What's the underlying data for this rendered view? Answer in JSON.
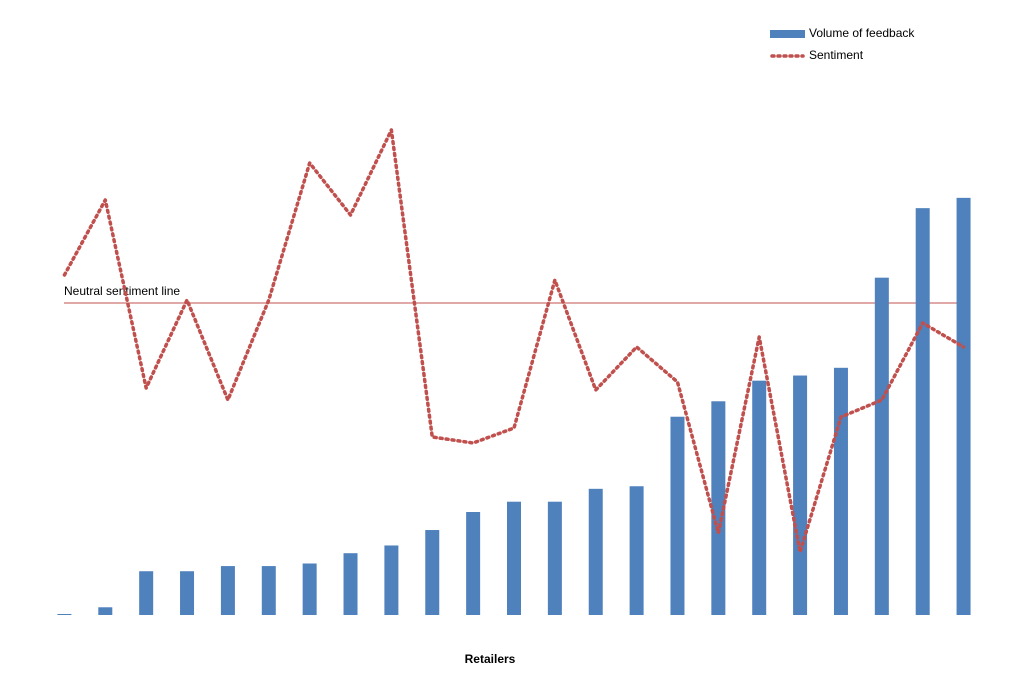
{
  "chart_data": {
    "type": "bar_line",
    "x_label": "Retailers",
    "categories": [
      null,
      null,
      null,
      null,
      null,
      null,
      null,
      null,
      null,
      null,
      null,
      null,
      null,
      null,
      null,
      null,
      null,
      null,
      null,
      null,
      null,
      null,
      null
    ],
    "series": [
      {
        "name": "Volume of feedback",
        "type": "bar",
        "color": "#4f81bd",
        "axis": "y",
        "values": [
          0.2,
          1.5,
          8.5,
          8.5,
          9.5,
          9.5,
          10,
          12,
          13.5,
          16.5,
          20,
          22,
          22,
          24.5,
          25,
          38.5,
          41.5,
          45.5,
          46.5,
          48,
          65.5,
          79,
          81
        ]
      },
      {
        "name": "Sentiment",
        "type": "line",
        "color": "#c0504d",
        "axis": "y2",
        "values": [
          14,
          51.5,
          -42.5,
          1.5,
          -48.5,
          1.5,
          70,
          44,
          86.5,
          -67,
          -70,
          -62.5,
          11.5,
          -43.5,
          -22,
          -39.5,
          -115,
          -17,
          -124.5,
          -57,
          -48.5,
          -10,
          -22
        ]
      }
    ],
    "ylim": [
      0,
      100
    ],
    "y2lim": [
      -156,
      101.5
    ],
    "reference_line": {
      "label": "Neutral sentiment line",
      "value": 0,
      "axis": "y2",
      "color": "#c0504d"
    },
    "legend": "top-right"
  }
}
